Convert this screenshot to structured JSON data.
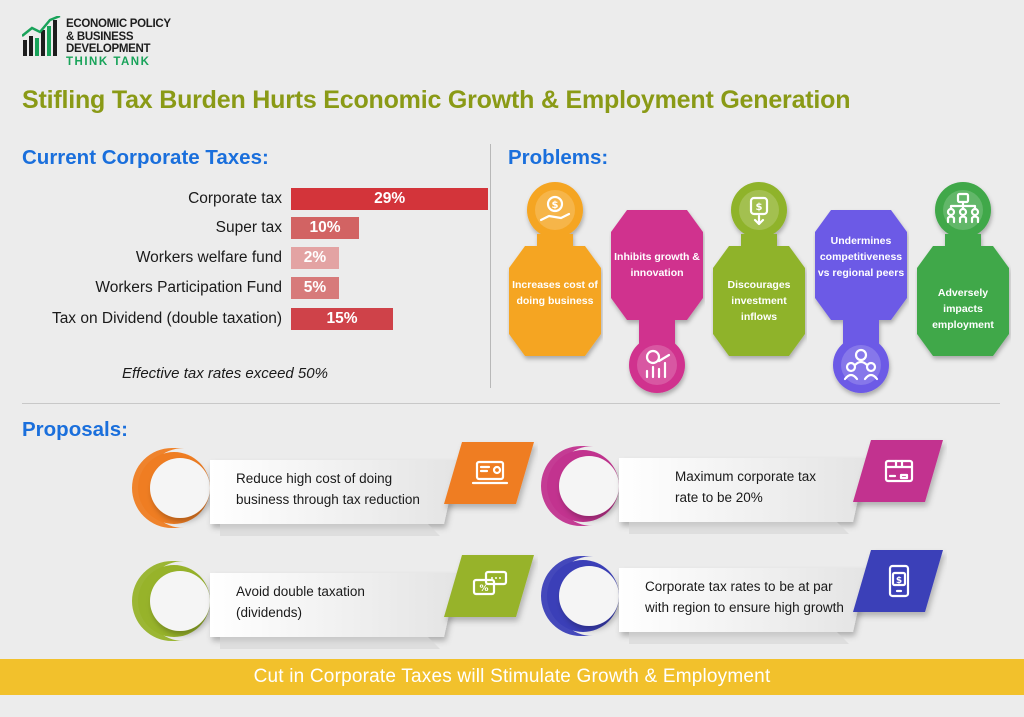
{
  "logo": {
    "line1": "ECONOMIC POLICY",
    "line2": "& BUSINESS DEVELOPMENT",
    "line3": "THINK TANK"
  },
  "title": "Stifling Tax Burden Hurts Economic Growth & Employment Generation",
  "taxes": {
    "heading": "Current Corporate Taxes:",
    "items": [
      {
        "label": "Corporate tax",
        "value": "29%",
        "pct": 29,
        "color": "#d3343a"
      },
      {
        "label": "Super tax",
        "value": "10%",
        "pct": 10,
        "color": "#d26363"
      },
      {
        "label": "Workers welfare fund",
        "value": "2%",
        "pct": 2,
        "color": "#e3a3a3"
      },
      {
        "label": "Workers Participation Fund",
        "value": "5%",
        "pct": 5,
        "color": "#d77a7a"
      },
      {
        "label": "Tax on Dividend (double taxation)",
        "value": "15%",
        "pct": 15,
        "color": "#cf4249"
      }
    ],
    "note": "Effective tax rates exceed 50%"
  },
  "problems": {
    "heading": "Problems:",
    "items": [
      {
        "text": "Increases cost of doing business",
        "color": "#f5a523",
        "icon": "money-hand-icon"
      },
      {
        "text": "Inhibits growth & innovation",
        "color": "#d0338e",
        "icon": "growth-chart-icon"
      },
      {
        "text": "Discourages investment inflows",
        "color": "#8fb32a",
        "icon": "investment-icon"
      },
      {
        "text": "Undermines competitiveness vs regional peers",
        "color": "#6c5ae6",
        "icon": "team-icon"
      },
      {
        "text": "Adversely impacts employment",
        "color": "#3fa84a",
        "icon": "people-network-icon"
      }
    ]
  },
  "proposals": {
    "heading": "Proposals:",
    "items": [
      {
        "text1": "Reduce high cost of doing",
        "text2": "business through tax reduction",
        "color": "#ef7d22",
        "icon": "laptop-icon"
      },
      {
        "text1": "Maximum corporate tax",
        "text2": "rate to be 20%",
        "color": "#c2338f",
        "icon": "box-icon"
      },
      {
        "text1": "Avoid double taxation",
        "text2": "(dividends)",
        "color": "#97b32a",
        "icon": "chat-percent-icon"
      },
      {
        "text1": "Corporate tax rates to be at par",
        "text2": "with region to ensure high growth",
        "color": "#3b3fb8",
        "icon": "tablet-dollar-icon"
      }
    ]
  },
  "footer": "Cut in Corporate Taxes will Stimulate Growth & Employment"
}
